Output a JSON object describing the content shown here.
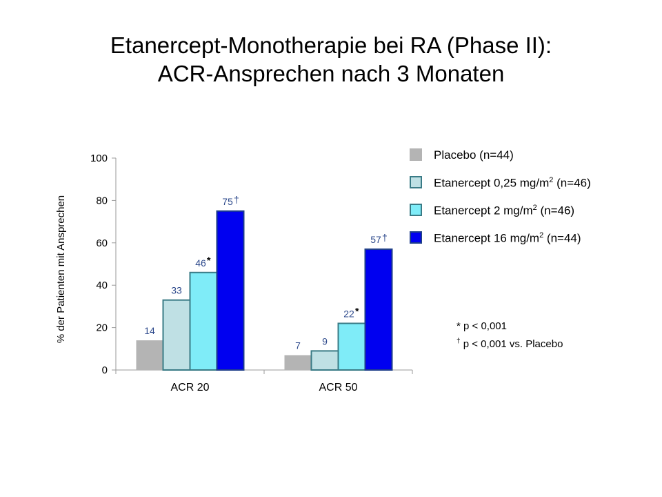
{
  "title": {
    "line1": "Etanercept-Monotherapie bei RA (Phase II):",
    "line2": "ACR-Ansprechen nach 3 Monaten"
  },
  "chart_data": {
    "type": "bar",
    "ylabel": "% der Patienten mit Ansprechen",
    "ylim": [
      0,
      100
    ],
    "yticks": [
      "0",
      "20",
      "40",
      "60",
      "80",
      "100"
    ],
    "categories": [
      "ACR 20",
      "ACR 50"
    ],
    "series": [
      {
        "name": "Placebo (n=44)",
        "color": "#b4b4b4",
        "values": [
          14,
          7
        ],
        "labels": [
          "14",
          "7"
        ],
        "markers": [
          "",
          ""
        ]
      },
      {
        "name": "Etanercept 0,25 mg/m2 (n=46)",
        "color": "#bfe0e4",
        "values": [
          33,
          9
        ],
        "labels": [
          "33",
          "9"
        ],
        "markers": [
          "",
          ""
        ]
      },
      {
        "name": "Etanercept 2 mg/m2 (n=46)",
        "color": "#7fecf8",
        "values": [
          46,
          22
        ],
        "labels": [
          "46",
          "22"
        ],
        "markers": [
          "*",
          "*"
        ]
      },
      {
        "name": "Etanercept 16 mg/m2 (n=44)",
        "color": "#0000f0",
        "values": [
          75,
          57
        ],
        "labels": [
          "75",
          "57"
        ],
        "markers": [
          "†",
          "†"
        ]
      }
    ],
    "legend": {
      "position": "top-right",
      "items": [
        {
          "text": "Placebo (n=44)",
          "pre": "Placebo (n=44)",
          "sup": "",
          "post": ""
        },
        {
          "text": "Etanercept 0,25 mg/m2 (n=46)",
          "pre": "Etanercept 0,25 mg/m",
          "sup": "2",
          "post": " (n=46)"
        },
        {
          "text": "Etanercept 2 mg/m2 (n=46)",
          "pre": "Etanercept 2 mg/m",
          "sup": "2",
          "post": " (n=46)"
        },
        {
          "text": "Etanercept 16 mg/m2 (n=44)",
          "pre": "Etanercept 16 mg/m",
          "sup": "2",
          "post": " (n=44)"
        }
      ]
    },
    "annotations": [
      {
        "symbol": "*",
        "text": " p  < 0,001"
      },
      {
        "symbol": "†",
        "text": " p  < 0,001 vs. Placebo"
      }
    ]
  }
}
